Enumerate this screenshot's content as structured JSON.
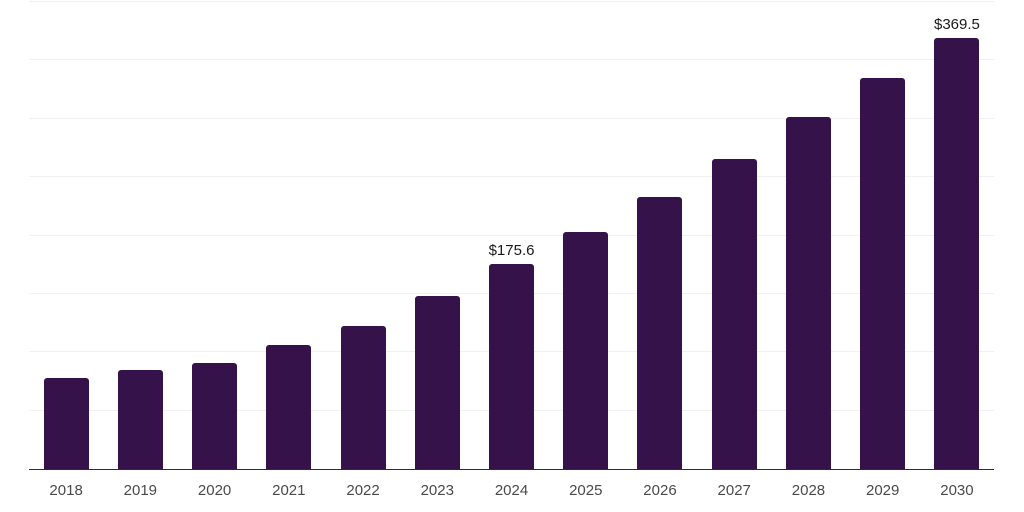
{
  "chart": {
    "background_color": "#ffffff",
    "bar_color": "#35124a",
    "gridline_color": "#f1f1f1",
    "axis_color": "#2d2d2d",
    "tick_label_color": "#4a4a4a",
    "value_label_color": "#1a1a1a"
  },
  "chart_data": {
    "type": "bar",
    "title": "",
    "xlabel": "",
    "ylabel": "",
    "categories": [
      "2018",
      "2019",
      "2020",
      "2021",
      "2022",
      "2023",
      "2024",
      "2025",
      "2026",
      "2027",
      "2028",
      "2029",
      "2030"
    ],
    "values": [
      78.3,
      84.5,
      90.8,
      106.4,
      122.4,
      148.0,
      175.6,
      203.2,
      232.9,
      265.3,
      301.2,
      334.8,
      369.5
    ],
    "data_labels": [
      "",
      "",
      "",
      "",
      "",
      "",
      "$175.6",
      "",
      "",
      "",
      "",
      "",
      "$369.5"
    ],
    "ylim": [
      0,
      400
    ],
    "grid_step": 50,
    "grid": "horizontal",
    "y_tick_labels_shown": false,
    "legend_position": "none",
    "currency_prefix": "$"
  }
}
